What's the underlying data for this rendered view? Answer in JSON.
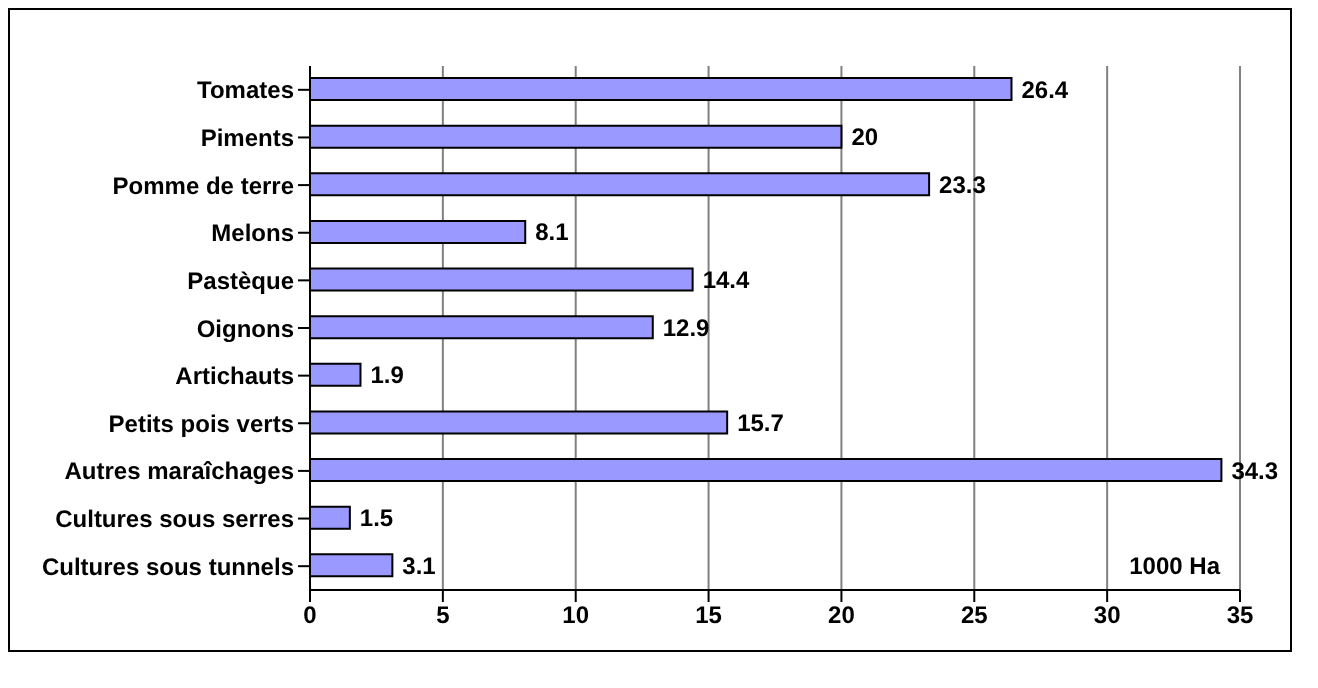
{
  "chart_data": {
    "type": "bar",
    "orientation": "horizontal",
    "categories": [
      "Tomates",
      "Piments",
      "Pomme de terre",
      "Melons",
      "Pastèque",
      "Oignons",
      "Artichauts",
      "Petits pois verts",
      "Autres maraîchages",
      "Cultures sous serres",
      "Cultures sous tunnels"
    ],
    "values": [
      26.4,
      20,
      23.3,
      8.1,
      14.4,
      12.9,
      1.9,
      15.7,
      34.3,
      1.5,
      3.1
    ],
    "color": "#9999ff",
    "xlim": [
      0,
      35
    ],
    "xticks": [
      0,
      5,
      10,
      15,
      20,
      25,
      30,
      35
    ],
    "grid": "x",
    "data_labels": true,
    "annotations": [
      "1000 Ha"
    ]
  }
}
